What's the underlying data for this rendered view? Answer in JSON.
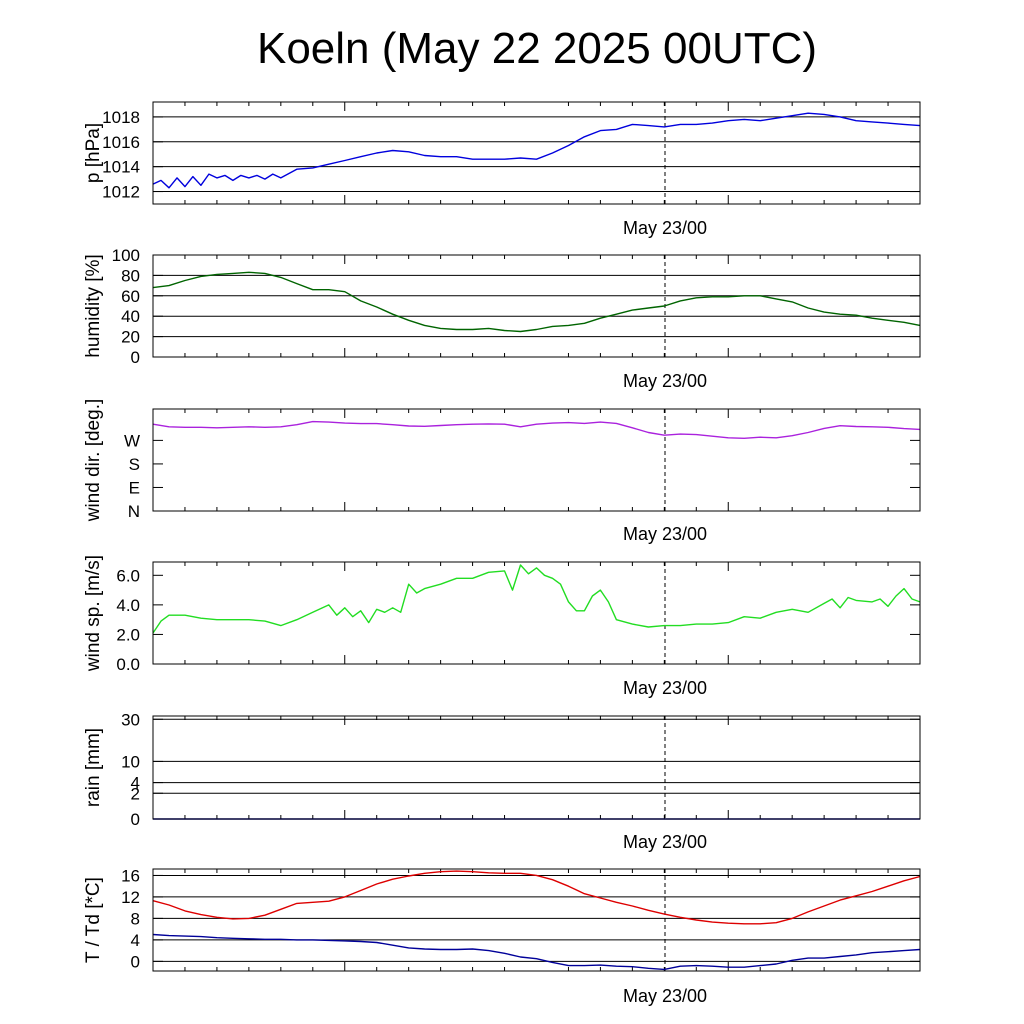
{
  "title": "Koeln (May 22 2025 00UTC)",
  "x_axis_label": "May 23/00",
  "chart_data": [
    {
      "type": "line",
      "ylabel": "p [hPa]",
      "ylim": [
        1011,
        1019.2
      ],
      "yticks": [
        1012,
        1014,
        1016,
        1018
      ],
      "ytick_labels": [
        "1012",
        "1014",
        "1016",
        "1018"
      ],
      "grid": true,
      "color": "#0000dd",
      "x_hours": [
        0,
        0.5,
        1,
        1.5,
        2,
        2.5,
        3,
        3.5,
        4,
        4.5,
        5,
        5.5,
        6,
        6.5,
        7,
        7.5,
        8,
        9,
        10,
        11,
        12,
        13,
        14,
        15,
        16,
        17,
        18,
        19,
        20,
        21,
        22,
        23,
        24,
        25,
        26,
        27,
        28,
        29,
        30,
        31,
        32,
        33,
        34,
        35,
        36,
        37,
        38,
        39,
        40,
        41,
        42,
        43,
        44,
        45,
        46,
        47,
        48
      ],
      "values": [
        1012.6,
        1012.9,
        1012.3,
        1013.1,
        1012.4,
        1013.2,
        1012.5,
        1013.4,
        1013.1,
        1013.3,
        1012.9,
        1013.3,
        1013.1,
        1013.3,
        1013.0,
        1013.4,
        1013.1,
        1013.8,
        1013.9,
        1014.2,
        1014.5,
        1014.8,
        1015.1,
        1015.3,
        1015.2,
        1014.9,
        1014.8,
        1014.8,
        1014.6,
        1014.6,
        1014.6,
        1014.7,
        1014.6,
        1015.1,
        1015.7,
        1016.4,
        1016.9,
        1017.0,
        1017.4,
        1017.3,
        1017.2,
        1017.4,
        1017.4,
        1017.5,
        1017.7,
        1017.8,
        1017.7,
        1017.9,
        1018.1,
        1018.3,
        1018.2,
        1018.0,
        1017.7,
        1017.6,
        1017.5,
        1017.4,
        1017.3
      ]
    },
    {
      "type": "line",
      "ylabel": "humidity [%]",
      "ylim": [
        0,
        100
      ],
      "yticks": [
        0,
        20,
        40,
        60,
        80,
        100
      ],
      "ytick_labels": [
        "0",
        "20",
        "40",
        "60",
        "80",
        "100"
      ],
      "grid": true,
      "color": "#006400",
      "x_hours": [
        0,
        1,
        2,
        3,
        4,
        5,
        6,
        7,
        8,
        9,
        10,
        11,
        12,
        13,
        14,
        15,
        16,
        17,
        18,
        19,
        20,
        21,
        22,
        23,
        24,
        25,
        26,
        27,
        28,
        29,
        30,
        31,
        32,
        33,
        34,
        35,
        36,
        37,
        38,
        39,
        40,
        41,
        42,
        43,
        44,
        45,
        46,
        47,
        48
      ],
      "values": [
        68,
        70,
        75,
        79,
        81,
        82,
        83,
        82,
        78,
        72,
        66,
        66,
        64,
        55,
        49,
        42,
        36,
        31,
        28,
        27,
        27,
        28,
        26,
        25,
        27,
        30,
        31,
        33,
        38,
        42,
        46,
        48,
        50,
        55,
        58,
        59,
        59,
        60,
        60,
        57,
        54,
        48,
        44,
        42,
        41,
        38,
        36,
        34,
        31
      ]
    },
    {
      "type": "line",
      "ylabel": "wind dir. [deg.]",
      "ylim": [
        0,
        390
      ],
      "yticks": [
        0,
        90,
        180,
        270
      ],
      "ytick_labels": [
        "N",
        "E",
        "S",
        "W"
      ],
      "grid": false,
      "color": "#aa22dd",
      "x_hours": [
        0,
        1,
        2,
        3,
        4,
        5,
        6,
        7,
        8,
        9,
        10,
        11,
        12,
        13,
        14,
        15,
        16,
        17,
        18,
        19,
        20,
        21,
        22,
        23,
        24,
        25,
        26,
        27,
        28,
        29,
        30,
        31,
        32,
        33,
        34,
        35,
        36,
        37,
        38,
        39,
        40,
        41,
        42,
        43,
        44,
        45,
        46,
        47,
        48
      ],
      "values": [
        332,
        322,
        320,
        320,
        318,
        320,
        322,
        320,
        322,
        330,
        342,
        340,
        336,
        334,
        334,
        330,
        325,
        324,
        327,
        330,
        332,
        333,
        332,
        322,
        332,
        336,
        338,
        335,
        340,
        335,
        318,
        300,
        290,
        294,
        292,
        286,
        280,
        278,
        282,
        280,
        288,
        300,
        316,
        326,
        323,
        322,
        320,
        315,
        312
      ]
    },
    {
      "type": "line",
      "ylabel": "wind sp. [m/s]",
      "ylim": [
        0,
        6.9
      ],
      "yticks": [
        0,
        2,
        4,
        6
      ],
      "ytick_labels": [
        "0.0",
        "2.0",
        "4.0",
        "6.0"
      ],
      "grid": false,
      "color": "#22dd22",
      "x_hours": [
        0,
        0.5,
        1,
        1.5,
        2,
        3,
        4,
        5,
        6,
        7,
        8,
        9,
        10,
        11,
        11.5,
        12,
        12.5,
        13,
        13.5,
        14,
        14.5,
        15,
        15.5,
        16,
        16.5,
        17,
        18,
        19,
        20,
        21,
        22,
        22.5,
        23,
        23.5,
        24,
        24.5,
        25,
        25.5,
        26,
        26.5,
        27,
        27.5,
        28,
        28.5,
        29,
        30,
        31,
        32,
        33,
        34,
        35,
        36,
        37,
        38,
        39,
        40,
        41,
        42,
        42.5,
        43,
        43.5,
        44,
        45,
        45.5,
        46,
        46.5,
        47,
        47.5,
        48
      ],
      "values": [
        2.1,
        2.9,
        3.3,
        3.3,
        3.3,
        3.1,
        3.0,
        3.0,
        3.0,
        2.9,
        2.6,
        3.0,
        3.5,
        4.0,
        3.3,
        3.8,
        3.2,
        3.6,
        2.8,
        3.7,
        3.5,
        3.8,
        3.5,
        5.4,
        4.8,
        5.1,
        5.4,
        5.8,
        5.8,
        6.2,
        6.3,
        5.0,
        6.7,
        6.1,
        6.5,
        6.0,
        5.8,
        5.4,
        4.2,
        3.6,
        3.6,
        4.6,
        5.0,
        4.2,
        3.0,
        2.7,
        2.5,
        2.6,
        2.6,
        2.7,
        2.7,
        2.8,
        3.2,
        3.1,
        3.5,
        3.7,
        3.5,
        4.1,
        4.4,
        3.8,
        4.5,
        4.3,
        4.2,
        4.4,
        3.9,
        4.6,
        5.1,
        4.4,
        4.2
      ]
    },
    {
      "type": "line",
      "ylabel": "rain [mm]",
      "scale": "sqrt",
      "ylim": [
        0,
        32
      ],
      "yticks": [
        0,
        2,
        4,
        10,
        30
      ],
      "ytick_labels": [
        "0",
        "2",
        "4",
        "10",
        "30"
      ],
      "grid": true,
      "color": "#0000aa",
      "x_hours": [
        0,
        48
      ],
      "values": [
        0,
        0
      ]
    },
    {
      "type": "line",
      "ylabel": "T / Td [*C]",
      "ylim": [
        -1.8,
        17.2
      ],
      "yticks": [
        0,
        4,
        8,
        12,
        16
      ],
      "ytick_labels": [
        "0",
        "4",
        "8",
        "12",
        "16"
      ],
      "grid": true,
      "x_hours": [
        0,
        1,
        2,
        3,
        4,
        5,
        6,
        7,
        8,
        9,
        10,
        11,
        12,
        13,
        14,
        15,
        16,
        17,
        18,
        19,
        20,
        21,
        22,
        23,
        24,
        25,
        26,
        27,
        28,
        29,
        30,
        31,
        32,
        33,
        34,
        35,
        36,
        37,
        38,
        39,
        40,
        41,
        42,
        43,
        44,
        45,
        46,
        47,
        48
      ],
      "series": [
        {
          "color": "#dd0000",
          "values": [
            11.3,
            10.5,
            9.4,
            8.7,
            8.2,
            7.9,
            8.0,
            8.6,
            9.7,
            10.8,
            11.0,
            11.2,
            12.0,
            13.2,
            14.4,
            15.3,
            15.9,
            16.4,
            16.7,
            16.8,
            16.7,
            16.5,
            16.4,
            16.4,
            16.0,
            15.2,
            14.0,
            12.6,
            11.8,
            11.0,
            10.3,
            9.5,
            8.8,
            8.2,
            7.7,
            7.3,
            7.1,
            7.0,
            7.0,
            7.2,
            8.0,
            9.2,
            10.3,
            11.4,
            12.2,
            13.0,
            14.0,
            15.0,
            15.8
          ]
        },
        {
          "color": "#000099",
          "values": [
            5.0,
            4.8,
            4.7,
            4.6,
            4.4,
            4.3,
            4.2,
            4.1,
            4.1,
            4.0,
            4.0,
            3.9,
            3.8,
            3.7,
            3.5,
            3.0,
            2.5,
            2.3,
            2.2,
            2.2,
            2.3,
            2.0,
            1.5,
            0.8,
            0.5,
            -0.2,
            -0.8,
            -0.8,
            -0.7,
            -0.9,
            -1.0,
            -1.3,
            -1.5,
            -0.9,
            -0.8,
            -0.9,
            -1.1,
            -1.1,
            -0.8,
            -0.5,
            0.2,
            0.6,
            0.6,
            0.9,
            1.2,
            1.6,
            1.8,
            2.0,
            2.2
          ]
        }
      ]
    }
  ]
}
